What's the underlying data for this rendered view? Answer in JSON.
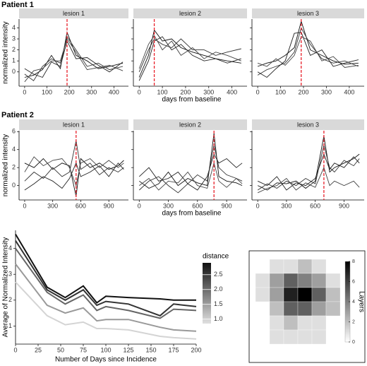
{
  "chart_data": [
    {
      "type": "facet-line",
      "title": "Patient 1",
      "xlabel": "days from baseline",
      "ylabel": "normalized intensity",
      "xlim": [
        -25,
        465
      ],
      "xticks": [
        0,
        100,
        200,
        300,
        400
      ],
      "ylim": [
        -1.3,
        4.8
      ],
      "yticks": [
        0,
        1,
        2,
        3,
        4
      ],
      "vline_color": "#e8202a",
      "panels": [
        {
          "label": "lesion 1",
          "vline": 190,
          "x": [
            0,
            40,
            80,
            120,
            160,
            190,
            230,
            280,
            330,
            380,
            440
          ],
          "series": [
            {
              "color": "#111111",
              "values": [
                -0.5,
                -0.3,
                0.2,
                1.5,
                0.3,
                3.6,
                1.5,
                1.0,
                0.3,
                0.5,
                0.8
              ]
            },
            {
              "color": "#333333",
              "values": [
                -0.2,
                -0.8,
                0.5,
                1.2,
                0.8,
                3.2,
                2.0,
                0.5,
                0.8,
                0.2,
                0.5
              ]
            },
            {
              "color": "#222222",
              "values": [
                0.3,
                -0.2,
                -0.5,
                0.9,
                0.5,
                2.8,
                1.2,
                1.3,
                0.6,
                0.0,
                0.9
              ]
            },
            {
              "color": "#444444",
              "values": [
                -0.9,
                0.1,
                0.3,
                1.0,
                1.0,
                3.0,
                1.8,
                0.2,
                0.4,
                0.6,
                0.1
              ]
            }
          ]
        },
        {
          "label": "lesion 2",
          "vline": 65,
          "x": [
            0,
            40,
            65,
            100,
            140,
            180,
            230,
            280,
            330,
            380,
            440
          ],
          "series": [
            {
              "color": "#111111",
              "values": [
                -0.5,
                1.5,
                3.8,
                2.8,
                3.0,
                2.2,
                1.8,
                1.5,
                1.2,
                1.0,
                0.8
              ]
            },
            {
              "color": "#333333",
              "values": [
                0.0,
                2.0,
                3.0,
                2.5,
                2.2,
                3.0,
                2.0,
                2.0,
                1.5,
                1.8,
                2.1
              ]
            },
            {
              "color": "#222222",
              "values": [
                -0.8,
                1.0,
                2.8,
                3.2,
                2.0,
                2.5,
                1.5,
                1.0,
                1.2,
                0.8,
                1.2
              ]
            },
            {
              "color": "#444444",
              "values": [
                0.3,
                2.5,
                3.3,
                2.0,
                2.8,
                1.5,
                2.2,
                1.2,
                1.8,
                1.5,
                1.0
              ]
            }
          ]
        },
        {
          "label": "lesion 3",
          "vline": 190,
          "x": [
            0,
            40,
            80,
            120,
            160,
            190,
            230,
            280,
            330,
            380,
            440
          ],
          "series": [
            {
              "color": "#111111",
              "values": [
                0.5,
                0.8,
                1.0,
                1.5,
                2.2,
                4.6,
                2.0,
                1.5,
                1.0,
                0.7,
                0.8
              ]
            },
            {
              "color": "#333333",
              "values": [
                -0.3,
                0.2,
                0.5,
                0.8,
                1.8,
                4.0,
                2.5,
                1.2,
                0.8,
                1.0,
                0.5
              ]
            },
            {
              "color": "#222222",
              "values": [
                0.0,
                -0.5,
                0.3,
                1.0,
                3.5,
                3.6,
                1.5,
                2.0,
                0.5,
                0.8,
                1.1
              ]
            },
            {
              "color": "#444444",
              "values": [
                0.8,
                0.5,
                1.2,
                0.6,
                1.5,
                3.2,
                2.8,
                1.0,
                1.4,
                0.4,
                0.6
              ]
            }
          ]
        }
      ]
    },
    {
      "type": "facet-line",
      "title": "Patient 2",
      "xlabel": "days from baseline",
      "ylabel": "normalized intensity",
      "xlim": [
        -60,
        1110
      ],
      "xticks": [
        0,
        300,
        600,
        900
      ],
      "ylim": [
        -1.6,
        6.1
      ],
      "yticks": [
        0,
        2,
        4,
        6
      ],
      "vline_color": "#e8202a",
      "panels": [
        {
          "label": "lesion 1",
          "vline": 550,
          "x": [
            0,
            100,
            200,
            300,
            400,
            480,
            550,
            600,
            700,
            800,
            900,
            1000,
            1060
          ],
          "series": [
            {
              "color": "#111111",
              "values": [
                2.5,
                2.0,
                3.0,
                1.8,
                2.5,
                2.2,
                -1.2,
                3.0,
                2.0,
                2.5,
                1.8,
                2.2,
                2.8
              ]
            },
            {
              "color": "#333333",
              "values": [
                0.5,
                1.5,
                0.8,
                2.0,
                1.0,
                1.5,
                5.0,
                1.8,
                2.5,
                1.2,
                2.0,
                1.5,
                2.0
              ]
            },
            {
              "color": "#222222",
              "values": [
                -0.5,
                0.2,
                1.0,
                0.5,
                -0.3,
                0.8,
                2.5,
                1.0,
                1.5,
                2.2,
                1.0,
                2.5,
                1.8
              ]
            },
            {
              "color": "#444444",
              "values": [
                1.5,
                3.2,
                2.2,
                2.8,
                3.0,
                2.0,
                0.0,
                2.5,
                3.0,
                2.0,
                2.8,
                2.0,
                2.5
              ]
            }
          ]
        },
        {
          "label": "lesion 2",
          "vline": 770,
          "x": [
            0,
            100,
            200,
            300,
            400,
            500,
            600,
            700,
            770,
            820,
            900,
            1000,
            1060
          ],
          "series": [
            {
              "color": "#111111",
              "values": [
                0.5,
                -0.3,
                0.2,
                1.5,
                0.0,
                0.8,
                0.3,
                0.0,
                5.8,
                1.0,
                0.5,
                0.3,
                0.0
              ]
            },
            {
              "color": "#333333",
              "values": [
                -0.5,
                0.5,
                1.0,
                0.0,
                -0.8,
                0.2,
                1.2,
                0.5,
                4.5,
                2.0,
                1.2,
                0.8,
                0.5
              ]
            },
            {
              "color": "#222222",
              "values": [
                1.0,
                2.0,
                0.5,
                0.8,
                1.5,
                0.2,
                -0.5,
                1.0,
                3.5,
                2.5,
                3.0,
                2.0,
                2.5
              ]
            },
            {
              "color": "#444444",
              "values": [
                0.0,
                0.8,
                -0.5,
                0.5,
                0.3,
                1.5,
                0.0,
                -0.3,
                2.5,
                0.5,
                -0.2,
                0.8,
                0.2
              ]
            }
          ]
        },
        {
          "label": "lesion 3",
          "vline": 690,
          "x": [
            0,
            100,
            200,
            300,
            400,
            500,
            600,
            690,
            750,
            800,
            900,
            1000,
            1060
          ],
          "series": [
            {
              "color": "#111111",
              "values": [
                0.0,
                -0.5,
                0.3,
                0.2,
                0.5,
                -0.3,
                0.5,
                5.5,
                1.5,
                2.0,
                2.5,
                3.0,
                3.5
              ]
            },
            {
              "color": "#333333",
              "values": [
                -0.5,
                0.2,
                -0.3,
                0.5,
                0.0,
                0.8,
                0.2,
                4.5,
                2.0,
                1.5,
                2.8,
                2.2,
                3.0
              ]
            },
            {
              "color": "#222222",
              "values": [
                0.5,
                0.0,
                1.0,
                -0.5,
                0.3,
                0.0,
                0.8,
                3.5,
                1.8,
                2.5,
                2.0,
                3.2,
                2.5
              ]
            },
            {
              "color": "#444444",
              "values": [
                -0.8,
                -0.3,
                0.0,
                0.8,
                -0.5,
                0.3,
                -0.2,
                2.0,
                0.0,
                0.5,
                0.0,
                0.5,
                -0.2
              ]
            }
          ]
        }
      ]
    },
    {
      "type": "line",
      "xlabel": "Number of Days since Incidence",
      "ylabel": "Average of Normalized Intensity",
      "xlim": [
        0,
        200
      ],
      "xticks": [
        0,
        25,
        50,
        75,
        100,
        125,
        150,
        175,
        200
      ],
      "ylim": [
        0.3,
        4.7
      ],
      "yticks": [
        1,
        2,
        3,
        4
      ],
      "x": [
        0,
        35,
        55,
        75,
        90,
        100,
        125,
        160,
        175,
        200
      ],
      "series": [
        {
          "color": "#111111",
          "values": [
            4.55,
            2.5,
            2.1,
            2.55,
            1.9,
            2.15,
            2.1,
            2.05,
            2.0,
            2.0
          ]
        },
        {
          "color": "#333333",
          "values": [
            4.3,
            2.4,
            2.0,
            2.4,
            1.8,
            1.95,
            1.85,
            1.4,
            1.85,
            1.75
          ]
        },
        {
          "color": "#666666",
          "values": [
            4.0,
            2.3,
            1.85,
            2.2,
            1.6,
            1.75,
            1.6,
            1.3,
            1.65,
            1.6
          ]
        },
        {
          "color": "#999999",
          "values": [
            3.4,
            1.8,
            1.5,
            1.7,
            1.2,
            1.25,
            1.25,
            0.95,
            0.85,
            0.8
          ]
        },
        {
          "color": "#d4d4d4",
          "values": [
            2.7,
            1.4,
            1.05,
            1.15,
            0.9,
            0.9,
            0.85,
            0.6,
            0.55,
            0.5
          ]
        }
      ],
      "colorbar": {
        "title": "distance",
        "lim": [
          0.85,
          2.9
        ],
        "colors": [
          "#e0e0e0",
          "#111111"
        ],
        "ticks": [
          {
            "value": 1,
            "label": "1.0"
          },
          {
            "value": 1.5,
            "label": "1.5"
          },
          {
            "value": 2,
            "label": "2.0"
          },
          {
            "value": 2.5,
            "label": "2.5"
          }
        ]
      }
    },
    {
      "type": "heatmap",
      "z": [
        [
          null,
          1,
          1,
          2,
          1,
          null
        ],
        [
          1,
          3,
          5,
          4,
          3,
          1
        ],
        [
          1,
          3,
          7,
          8,
          5,
          2
        ],
        [
          null,
          2,
          5,
          5,
          3,
          2
        ],
        [
          null,
          1,
          2,
          1,
          1,
          null
        ],
        [
          null,
          1,
          1,
          1,
          1,
          null
        ]
      ],
      "zlim": [
        0,
        8
      ],
      "colors": [
        "#ffffff",
        "#000000"
      ],
      "colorbar": {
        "title": "Layers",
        "ticks": [
          0,
          2,
          4,
          6,
          8
        ]
      }
    }
  ]
}
